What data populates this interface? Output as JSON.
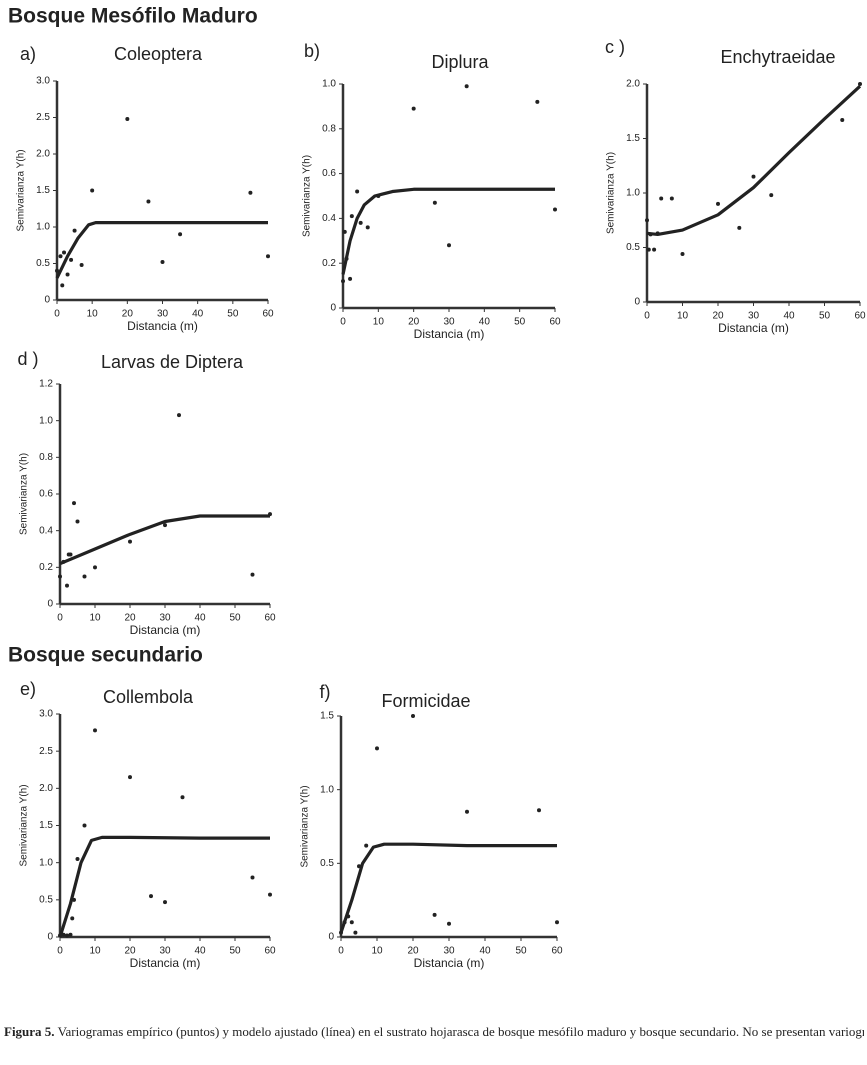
{
  "headings": [
    "Bosque Mesófilo Maduro",
    "Bosque secundario"
  ],
  "caption": {
    "label": "Figura 5.",
    "text": "Variogramas empírico (puntos) y modelo ajustado (línea) en el sustrato hojarasca de bosque mesófilo maduro y bosque secundario. No se presentan variogramas para pastizal porque ningún taxón presentó autocorrelación."
  },
  "chart_data": [
    {
      "type": "scatter",
      "panel": "a)",
      "title": "Coleoptera",
      "xlabel": "Distancia  (m)",
      "ylabel": "Semivarianza Y(h)",
      "xlim": [
        0,
        60
      ],
      "ylim": [
        0,
        3
      ],
      "xticks": [
        0,
        10,
        20,
        30,
        40,
        50,
        60
      ],
      "yticks": [
        0,
        0.5,
        {
          "value": 1,
          "label": "1.0"
        },
        1.5,
        {
          "value": 2,
          "label": "2.0"
        },
        2.5,
        {
          "value": 3,
          "label": "3.0"
        }
      ],
      "points": {
        "x": [
          0,
          1,
          2,
          1.5,
          3,
          4,
          5,
          7,
          10,
          20,
          26,
          30,
          35,
          55,
          60
        ],
        "values": [
          0.4,
          0.6,
          0.65,
          0.2,
          0.35,
          0.55,
          0.95,
          0.48,
          1.5,
          2.48,
          1.35,
          0.52,
          0.9,
          1.47,
          0.6
        ]
      },
      "model": {
        "x": [
          0,
          3,
          6,
          9,
          11,
          60
        ],
        "values": [
          0.3,
          0.6,
          0.85,
          1.03,
          1.06,
          1.06
        ]
      }
    },
    {
      "type": "scatter",
      "panel": "b)",
      "title": "Diplura",
      "xlabel": "Distancia  (m)",
      "ylabel": "Semivarianza Y(h)",
      "xlim": [
        0,
        60
      ],
      "ylim": [
        0,
        1
      ],
      "xticks": [
        0,
        10,
        20,
        30,
        40,
        50,
        60
      ],
      "yticks": [
        0,
        0.2,
        0.4,
        0.6,
        0.8,
        {
          "value": 1,
          "label": "1.0"
        }
      ],
      "points": {
        "x": [
          0,
          0.5,
          1,
          2,
          2.5,
          4,
          5,
          7,
          10,
          20,
          26,
          30,
          35,
          55,
          60
        ],
        "values": [
          0.12,
          0.34,
          0.22,
          0.13,
          0.41,
          0.52,
          0.38,
          0.36,
          0.5,
          0.89,
          0.47,
          0.28,
          0.99,
          0.92,
          0.44
        ]
      },
      "model": {
        "x": [
          0,
          2,
          4,
          6,
          9,
          14,
          20,
          60
        ],
        "values": [
          0.15,
          0.3,
          0.4,
          0.46,
          0.5,
          0.52,
          0.53,
          0.53
        ]
      }
    },
    {
      "type": "scatter",
      "panel": "c )",
      "title": "Enchytraeidae",
      "xlabel": "Distancia  (m)",
      "ylabel": "Semivarianza Y(h)",
      "xlim": [
        0,
        60
      ],
      "ylim": [
        0,
        2
      ],
      "xticks": [
        0,
        10,
        20,
        30,
        40,
        50,
        60
      ],
      "yticks": [
        0,
        0.5,
        {
          "value": 1,
          "label": "1.0"
        },
        1.5,
        {
          "value": 2,
          "label": "2.0"
        }
      ],
      "points": {
        "x": [
          0,
          0.5,
          1,
          2,
          3,
          4,
          7,
          10,
          20,
          26,
          30,
          35,
          55,
          60
        ],
        "values": [
          0.75,
          0.48,
          0.62,
          0.48,
          0.63,
          0.95,
          0.95,
          0.44,
          0.9,
          0.68,
          1.15,
          0.98,
          1.67,
          2
        ]
      },
      "model": {
        "x": [
          0,
          3,
          10,
          20,
          30,
          40,
          50,
          60
        ],
        "values": [
          0.63,
          0.62,
          0.66,
          0.8,
          1.05,
          1.37,
          1.68,
          1.98
        ]
      }
    },
    {
      "type": "scatter",
      "panel": "d )",
      "title": "Larvas de Diptera",
      "xlabel": "Distancia  (m)",
      "ylabel": "Semivarianza Y(h)",
      "xlim": [
        0,
        60
      ],
      "ylim": [
        0,
        1.2
      ],
      "xticks": [
        0,
        10,
        20,
        30,
        40,
        50,
        60
      ],
      "yticks": [
        0,
        0.2,
        0.4,
        0.6,
        0.8,
        {
          "value": 1,
          "label": "1.0"
        },
        1.2
      ],
      "points": {
        "x": [
          0,
          1,
          2,
          2.5,
          3,
          4,
          5,
          7,
          10,
          20,
          30,
          34,
          55,
          60
        ],
        "values": [
          0.15,
          0.23,
          0.1,
          0.27,
          0.27,
          0.55,
          0.45,
          0.15,
          0.2,
          0.34,
          0.43,
          1.03,
          0.16,
          0.49
        ]
      },
      "model": {
        "x": [
          0,
          10,
          20,
          30,
          40,
          60
        ],
        "values": [
          0.22,
          0.3,
          0.38,
          0.45,
          0.48,
          0.48
        ]
      }
    },
    {
      "type": "scatter",
      "panel": "e)",
      "title": "Collembola",
      "xlabel": "Distancia  (m)",
      "ylabel": "Semivarianza Y(h)",
      "xlim": [
        0,
        60
      ],
      "ylim": [
        0,
        3
      ],
      "xticks": [
        0,
        10,
        20,
        30,
        40,
        50,
        60
      ],
      "yticks": [
        0,
        0.5,
        {
          "value": 1,
          "label": "1.0"
        },
        1.5,
        {
          "value": 2,
          "label": "2.0"
        },
        2.5,
        {
          "value": 3,
          "label": "3.0"
        }
      ],
      "points": {
        "x": [
          0,
          1,
          2,
          3,
          3.5,
          4,
          5,
          7,
          10,
          20,
          26,
          30,
          35,
          55,
          60
        ],
        "values": [
          0.02,
          0.03,
          0.02,
          0.03,
          0.25,
          0.5,
          1.05,
          1.5,
          2.78,
          2.15,
          0.55,
          0.47,
          1.88,
          0.8,
          0.57
        ]
      },
      "model": {
        "x": [
          0,
          3,
          6,
          9,
          12,
          20,
          40,
          60
        ],
        "values": [
          0,
          0.45,
          1,
          1.3,
          1.34,
          1.34,
          1.33,
          1.33
        ]
      }
    },
    {
      "type": "scatter",
      "panel": "f)",
      "title": "Formicidae",
      "xlabel": "Distancia  (m)",
      "ylabel": "Semivarianza Y(h)",
      "xlim": [
        0,
        60
      ],
      "ylim": [
        0,
        1.5
      ],
      "xticks": [
        0,
        10,
        20,
        30,
        40,
        50,
        60
      ],
      "yticks": [
        0,
        0.5,
        {
          "value": 1,
          "label": "1.0"
        },
        1.5
      ],
      "points": {
        "x": [
          0,
          1,
          2,
          3,
          4,
          5,
          7,
          10,
          20,
          26,
          30,
          35,
          55,
          60
        ],
        "values": [
          0.03,
          0.1,
          0.14,
          0.1,
          0.03,
          0.48,
          0.62,
          1.28,
          1.5,
          0.15,
          0.09,
          0.85,
          0.86,
          0.1
        ]
      },
      "model": {
        "x": [
          0,
          3,
          6,
          9,
          12,
          20,
          35,
          60
        ],
        "values": [
          0.03,
          0.25,
          0.5,
          0.61,
          0.63,
          0.63,
          0.62,
          0.62
        ]
      }
    }
  ]
}
